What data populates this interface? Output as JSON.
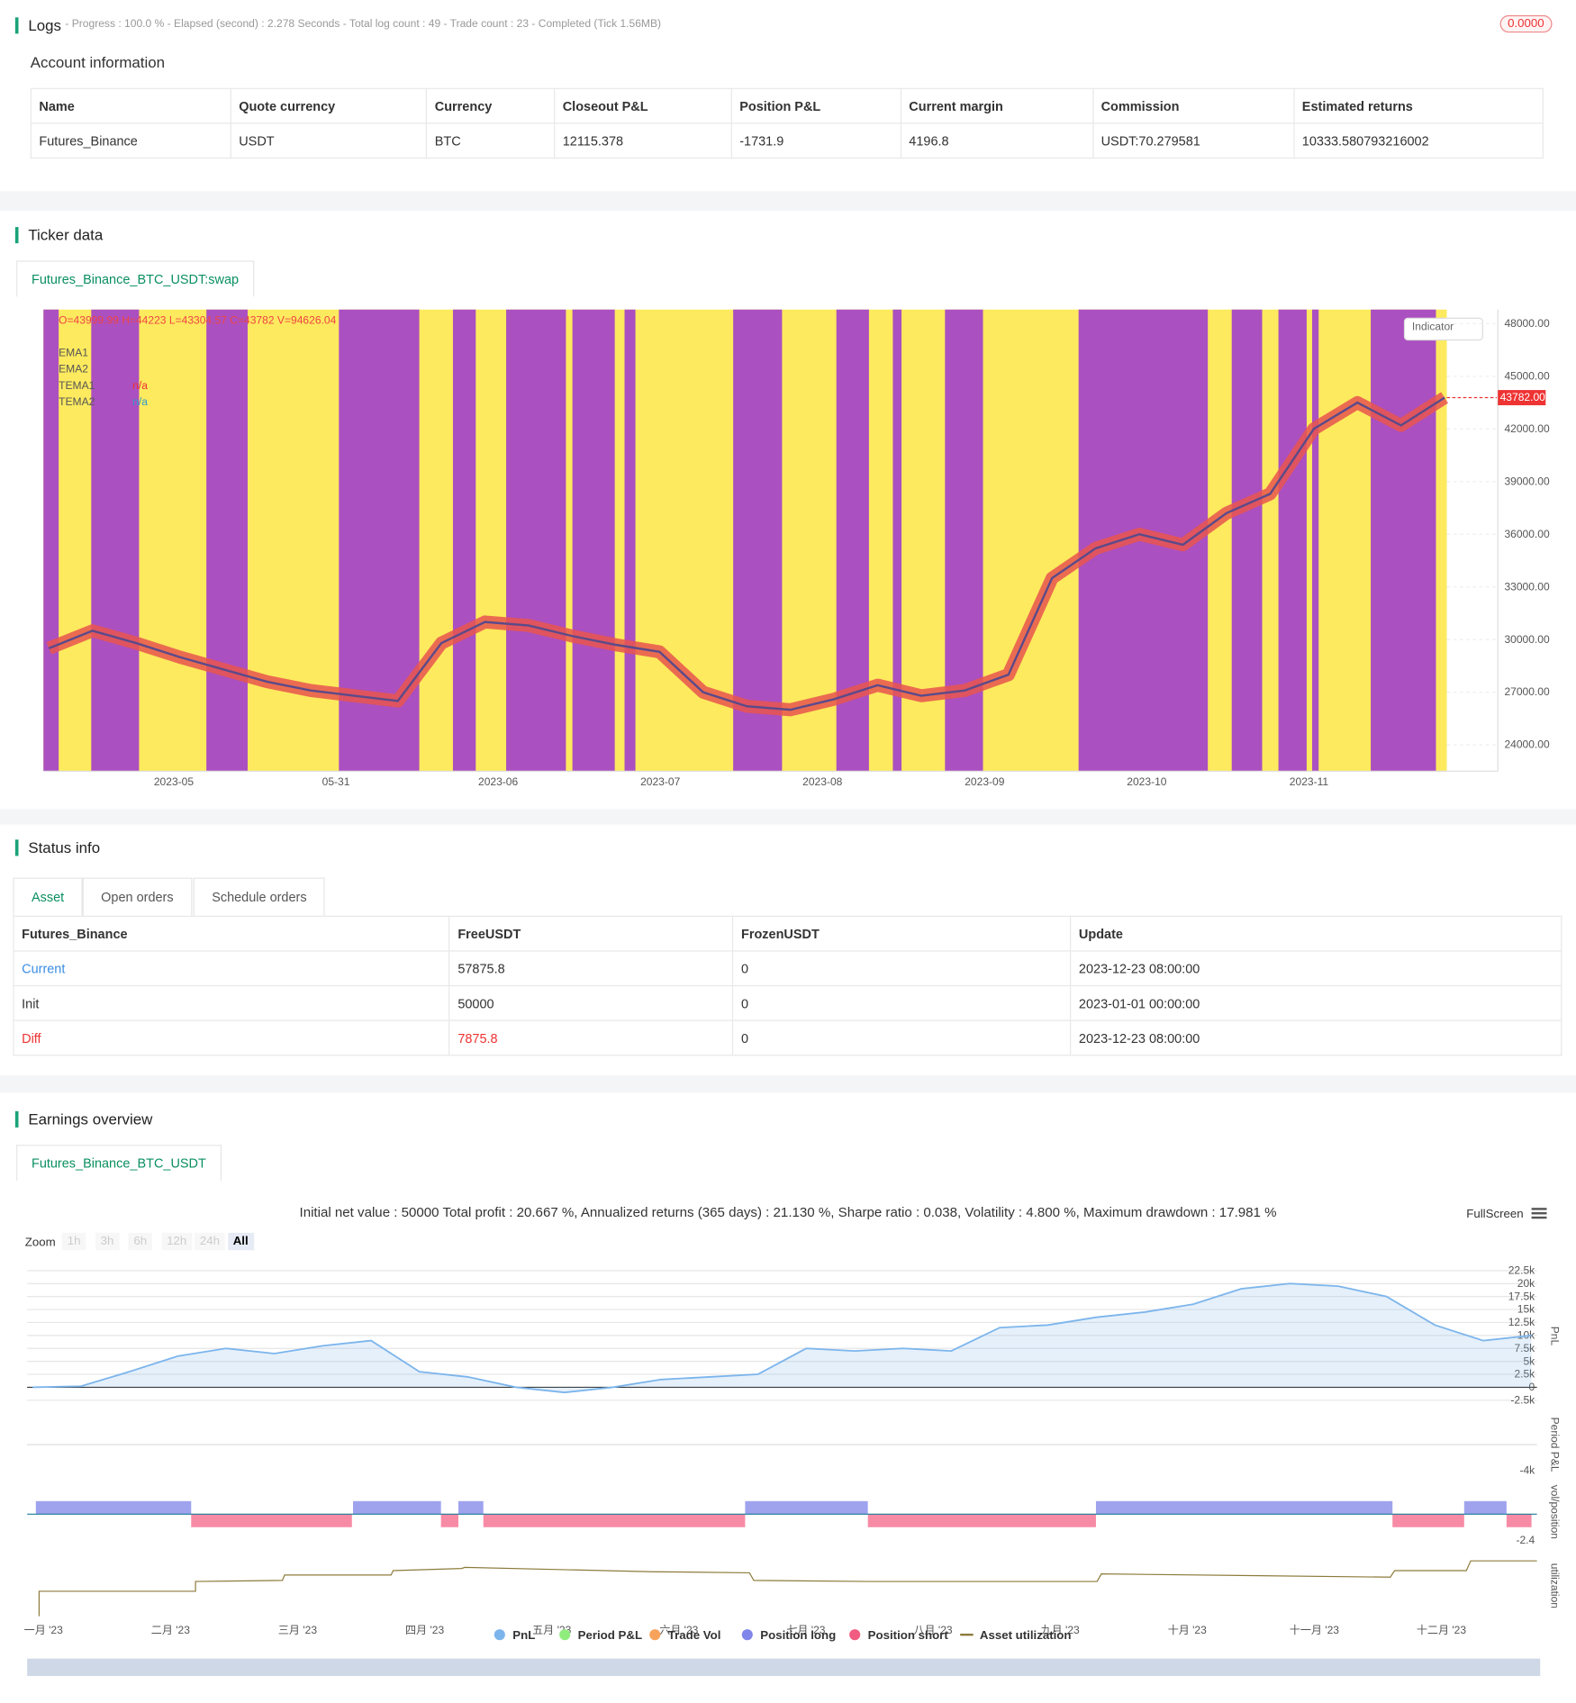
{
  "logs": {
    "title": "Logs",
    "status": "- Progress : 100.0 % - Elapsed (second) : 2.278  Seconds - Total log count : 49 - Trade count : 23 - Completed (Tick 1.56MB)",
    "badge": "0.0000"
  },
  "account": {
    "title": "Account information",
    "columns": [
      "Name",
      "Quote currency",
      "Currency",
      "Closeout P&L",
      "Position P&L",
      "Current margin",
      "Commission",
      "Estimated returns"
    ],
    "rows": [
      [
        "Futures_Binance",
        "USDT",
        "BTC",
        "12115.378",
        "-1731.9",
        "4196.8",
        "USDT:70.279581",
        "10333.580793216002"
      ]
    ]
  },
  "ticker": {
    "title": "Ticker data",
    "tab": "Futures_Binance_BTC_USDT:swap",
    "ohlc": "O=43999.99 H=44223 L=43304.57 C=43782 V=94626.04",
    "lines": [
      "EMA1",
      "EMA2",
      "TEMA1",
      "TEMA2"
    ],
    "na": "n/a",
    "indicator": "Indicator",
    "chart_data": {
      "type": "line",
      "color": "#e8554e",
      "ylim": [
        22500,
        48800
      ],
      "yticks": [
        {
          "value": 48000,
          "label": "48000.00"
        },
        {
          "value": 45000,
          "label": "45000.00"
        },
        {
          "value": 42000,
          "label": "42000.00"
        },
        {
          "value": 39000,
          "label": "39000.00"
        },
        {
          "value": 36000,
          "label": "36000.00"
        },
        {
          "value": 33000,
          "label": "33000.00"
        },
        {
          "value": 30000,
          "label": "30000.00"
        },
        {
          "value": 27000,
          "label": "27000.00"
        },
        {
          "value": 24000,
          "label": "24000.00"
        }
      ],
      "xticks": [
        "2023-05",
        "05-31",
        "2023-06",
        "2023-07",
        "2023-08",
        "2023-09",
        "2023-10",
        "2023-11"
      ],
      "values": [
        29500,
        30500,
        29800,
        29000,
        28300,
        27600,
        27100,
        26800,
        26500,
        29800,
        31000,
        30800,
        30200,
        29700,
        29300,
        27000,
        26200,
        26000,
        26600,
        27400,
        26800,
        27100,
        28000,
        33500,
        35200,
        36000,
        35400,
        37200,
        38300,
        42000,
        43500,
        42200,
        43782
      ],
      "last": {
        "value": 43782,
        "label": "43782.00"
      }
    }
  },
  "status": {
    "title": "Status info",
    "tabs": [
      "Asset",
      "Open orders",
      "Schedule orders"
    ],
    "columns": [
      "Futures_Binance",
      "FreeUSDT",
      "FrozenUSDT",
      "Update"
    ],
    "rows": [
      [
        "Current",
        "57875.8",
        "0",
        "2023-12-23 08:00:00"
      ],
      [
        "Init",
        "50000",
        "0",
        "2023-01-01 00:00:00"
      ],
      [
        "Diff",
        "7875.8",
        "0",
        "2023-12-23 08:00:00"
      ]
    ]
  },
  "earnings": {
    "title": "Earnings overview",
    "tab": "Futures_Binance_BTC_USDT",
    "summary": "Initial net value : 50000 Total profit : 20.667 %, Annualized returns (365 days) : 21.130 %, Sharpe ratio : 0.038, Volatility : 4.800 %, Maximum drawdown : 17.981 %",
    "fullscreen": "FullScreen",
    "zoom": "Zoom",
    "zoom_buttons": [
      "1h",
      "3h",
      "6h",
      "12h",
      "24h",
      "All"
    ],
    "chart_data": {
      "type": "area",
      "color": "#7cb5ec",
      "ylim": [
        -3100,
        23500
      ],
      "yticks": [
        {
          "value": 22500,
          "label": "22.5k"
        },
        {
          "value": 20000,
          "label": "20k"
        },
        {
          "value": 17500,
          "label": "17.5k"
        },
        {
          "value": 15000,
          "label": "15k"
        },
        {
          "value": 12500,
          "label": "12.5k"
        },
        {
          "value": 10000,
          "label": "10k"
        },
        {
          "value": 7500,
          "label": "7.5k"
        },
        {
          "value": 5000,
          "label": "5k"
        },
        {
          "value": 2500,
          "label": "2.5k"
        },
        0,
        {
          "value": -2500,
          "label": "-2.5k"
        }
      ],
      "values": [
        0,
        200,
        3000,
        6000,
        7500,
        6500,
        8000,
        9000,
        3000,
        2000,
        0,
        -1000,
        0,
        1500,
        2000,
        2500,
        7500,
        7000,
        7500,
        7000,
        11500,
        12000,
        13500,
        14500,
        16000,
        19000,
        20000,
        19500,
        17500,
        12000,
        9000,
        10000
      ],
      "axis_titles": [
        "PnL",
        "Period P&L",
        "vol/position",
        "utilization"
      ],
      "period_min": "-4k",
      "position_min": "-2.4",
      "months": [
        "一月 '23",
        "二月 '23",
        "三月 '23",
        "四月 '23",
        "五月 '23",
        "六月 '23",
        "七月 '23",
        "八月 '23",
        "九月 '23",
        "十月 '23",
        "十一月 '23",
        "十二月 '23"
      ],
      "legend": [
        {
          "name": "PnL",
          "color": "#7cb5ec"
        },
        {
          "name": "Period P&L",
          "color": "#90ed7d"
        },
        {
          "name": "Trade Vol",
          "color": "#f7a35c"
        },
        {
          "name": "Position long",
          "color": "#8085e9"
        },
        {
          "name": "Position short",
          "color": "#f15c80"
        },
        {
          "name": "Asset utilization",
          "color": "#8d7b3b"
        }
      ]
    }
  }
}
